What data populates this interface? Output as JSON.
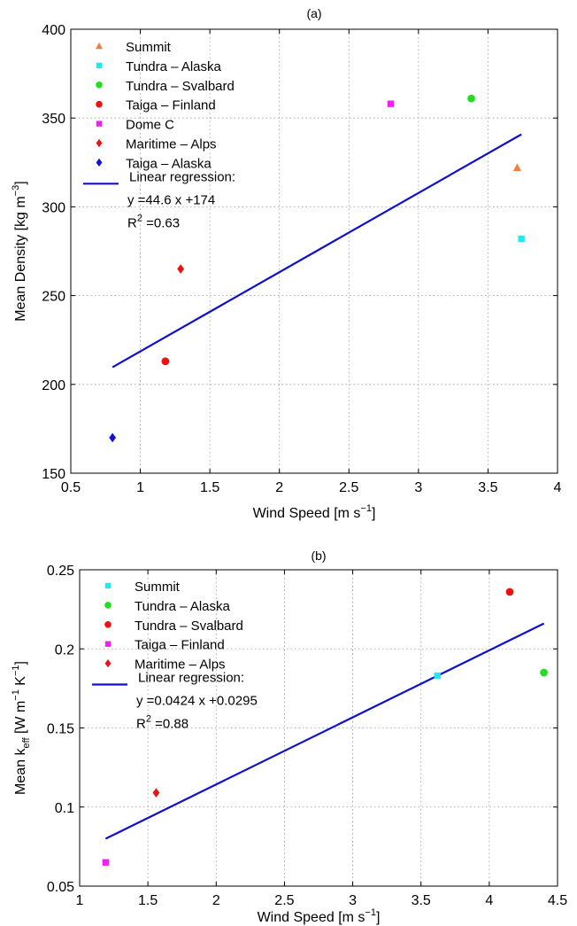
{
  "chart_data": [
    {
      "type": "scatter",
      "title": "(a)",
      "xlabel": "Wind Speed [m s⁻¹]",
      "xlabel_main": "Wind Speed [m s",
      "xlabel_sup": "−1",
      "xlabel_end": "]",
      "ylabel": "Mean Density [kg m⁻³]",
      "ylabel_main": "Mean Density [kg m",
      "ylabel_sup": "−3",
      "ylabel_end": "]",
      "xlim": [
        0.5,
        4
      ],
      "ylim": [
        150,
        400
      ],
      "xticks": [
        0.5,
        1,
        1.5,
        2,
        2.5,
        3,
        3.5,
        4
      ],
      "xticklabels": [
        "0.5",
        "1",
        "1.5",
        "2",
        "2.5",
        "3",
        "3.5",
        "4"
      ],
      "yticks": [
        150,
        200,
        250,
        300,
        350,
        400
      ],
      "yticklabels": [
        "150",
        "200",
        "250",
        "300",
        "350",
        "400"
      ],
      "grid": true,
      "legend_position": "top-left",
      "series": [
        {
          "name": "Summit",
          "marker": "triangle",
          "color": "#f08040",
          "x": 3.71,
          "y": 322
        },
        {
          "name": "Tundra – Alaska",
          "marker": "square",
          "color": "#22e8f0",
          "x": 3.74,
          "y": 282
        },
        {
          "name": "Tundra – Svalbard",
          "marker": "circle",
          "color": "#22dd22",
          "x": 3.38,
          "y": 361
        },
        {
          "name": "Taiga – Finland",
          "marker": "circle",
          "color": "#ee1111",
          "x": 1.18,
          "y": 213
        },
        {
          "name": "Dome C",
          "marker": "square",
          "color": "#ee22ee",
          "x": 2.8,
          "y": 358
        },
        {
          "name": "Maritime – Alps",
          "marker": "diamond",
          "color": "#ee1111",
          "x": 1.29,
          "y": 265
        },
        {
          "name": "Taiga – Alaska",
          "marker": "diamond",
          "color": "#1111dd",
          "x": 0.8,
          "y": 170
        }
      ],
      "regression": {
        "name": "Linear regression:",
        "equation": "y =44.6 x +174",
        "r2_label": "R",
        "r2_sup": "2",
        "r2_value": " =0.63",
        "slope": 44.6,
        "intercept": 174,
        "x_range": [
          0.8,
          3.74
        ],
        "color": "#1111cc"
      }
    },
    {
      "type": "scatter",
      "title": "(b)",
      "xlabel": "Wind Speed [m s⁻¹]",
      "xlabel_main": "Wind Speed [m s",
      "xlabel_sup": "−1",
      "xlabel_end": "]",
      "ylabel": "Mean k_eff [W m⁻¹ K⁻¹]",
      "ylabel_main": "Mean k",
      "ylabel_sub": "eff",
      "ylabel_mid": " [W m",
      "ylabel_sup": "−1",
      "ylabel_mid2": " K",
      "ylabel_sup2": "−1",
      "ylabel_end": "]",
      "xlim": [
        1,
        4.5
      ],
      "ylim": [
        0.05,
        0.25
      ],
      "xticks": [
        1,
        1.5,
        2,
        2.5,
        3,
        3.5,
        4,
        4.5
      ],
      "xticklabels": [
        "1",
        "1.5",
        "2",
        "2.5",
        "3",
        "3.5",
        "4",
        "4.5"
      ],
      "yticks": [
        0.05,
        0.1,
        0.15,
        0.2,
        0.25
      ],
      "yticklabels": [
        "0.05",
        "0.1",
        "0.15",
        "0.2",
        "0.25"
      ],
      "grid": true,
      "legend_position": "top-left",
      "series": [
        {
          "name": "Summit",
          "marker": "square",
          "color": "#22e8f0",
          "x": 3.62,
          "y": 0.183
        },
        {
          "name": "Tundra – Alaska",
          "marker": "circle",
          "color": "#22dd22",
          "x": 4.4,
          "y": 0.185
        },
        {
          "name": "Tundra – Svalbard",
          "marker": "circle",
          "color": "#ee1111",
          "x": 4.15,
          "y": 0.236
        },
        {
          "name": "Taiga – Finland",
          "marker": "square",
          "color": "#ee22ee",
          "x": 1.19,
          "y": 0.065
        },
        {
          "name": "Maritime – Alps",
          "marker": "diamond",
          "color": "#ee1111",
          "x": 1.56,
          "y": 0.109
        }
      ],
      "regression": {
        "name": "Linear regression:",
        "equation": "y =0.0424 x +0.0295",
        "r2_label": "R",
        "r2_sup": "2",
        "r2_value": " =0.88",
        "slope": 0.0424,
        "intercept": 0.0295,
        "x_range": [
          1.19,
          4.4
        ],
        "color": "#1111cc"
      }
    }
  ]
}
